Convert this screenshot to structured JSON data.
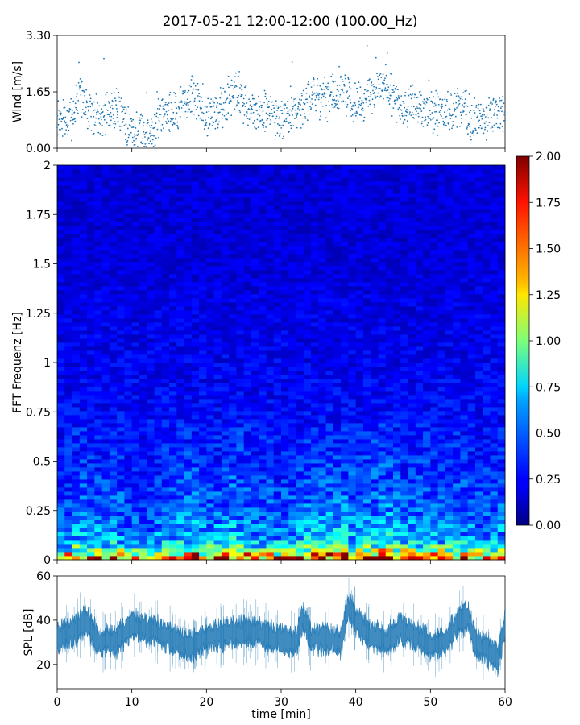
{
  "chart_data": [
    {
      "panel": "wind",
      "type": "scatter",
      "title": "2017-05-21 12:00-12:00 (100.00_Hz)",
      "ylabel": "Wind [m/s]",
      "xlim": [
        0,
        60
      ],
      "ylim": [
        0,
        3.3
      ],
      "yticks": [
        "0.00",
        "1.65",
        "3.30"
      ],
      "color": "#1f77b4",
      "series": [
        {
          "x": [
            0,
            2,
            3,
            4,
            6,
            8,
            10,
            12,
            14,
            16,
            18,
            20,
            22,
            24,
            26,
            28,
            30,
            32,
            34,
            36,
            38,
            40,
            42,
            44,
            46,
            48,
            50,
            52,
            54,
            56,
            58,
            60
          ],
          "y": [
            0.7,
            0.9,
            1.6,
            1.1,
            0.9,
            1.2,
            0.5,
            0.4,
            1.0,
            1.1,
            1.6,
            0.9,
            1.2,
            1.7,
            1.0,
            1.1,
            0.8,
            1.1,
            1.5,
            1.4,
            1.8,
            1.2,
            1.5,
            1.9,
            1.1,
            1.3,
            1.1,
            1.0,
            1.2,
            0.8,
            0.9,
            1.1
          ]
        }
      ]
    },
    {
      "panel": "spectrogram",
      "type": "heatmap",
      "ylabel": "FFT Frequenz [Hz]",
      "xlim": [
        0,
        60
      ],
      "ylim": [
        0,
        2
      ],
      "yticks": [
        "0",
        "0.25",
        "0.5",
        "0.75",
        "1",
        "1.25",
        "1.5",
        "1.75",
        "2"
      ],
      "colormap": "jet",
      "colorbar": {
        "range": [
          0,
          2
        ],
        "ticks": [
          "0.00",
          "0.25",
          "0.50",
          "0.75",
          "1.00",
          "1.25",
          "1.50",
          "1.75",
          "2.00"
        ]
      },
      "intensity_profile": {
        "frequency": [
          0,
          0.03,
          0.06,
          0.1,
          0.25,
          0.5,
          0.75,
          1.0,
          1.5,
          2.0
        ],
        "level": [
          1.7,
          1.2,
          0.8,
          0.55,
          0.4,
          0.3,
          0.25,
          0.22,
          0.18,
          0.17
        ]
      }
    },
    {
      "panel": "spl",
      "type": "line",
      "ylabel": "SPL [dB]",
      "xlabel": "time [min]",
      "xlim": [
        0,
        60
      ],
      "ylim": [
        9,
        60
      ],
      "xticks": [
        "0",
        "10",
        "20",
        "30",
        "40",
        "50",
        "60"
      ],
      "yticks": [
        "20",
        "40",
        "60"
      ],
      "color": "#1f77b4",
      "series": [
        {
          "x": [
            0,
            2,
            4,
            5,
            6,
            8,
            10,
            12,
            14,
            16,
            18,
            20,
            22,
            24,
            26,
            28,
            30,
            32,
            33,
            34,
            36,
            38,
            39,
            40,
            42,
            44,
            46,
            48,
            50,
            52,
            54,
            55,
            56,
            58,
            59,
            60
          ],
          "y": [
            32,
            35,
            40,
            33,
            30,
            31,
            38,
            36,
            34,
            30,
            28,
            32,
            33,
            34,
            35,
            33,
            31,
            30,
            42,
            31,
            32,
            30,
            46,
            40,
            33,
            30,
            36,
            33,
            28,
            30,
            40,
            42,
            30,
            26,
            22,
            38
          ]
        }
      ]
    }
  ]
}
